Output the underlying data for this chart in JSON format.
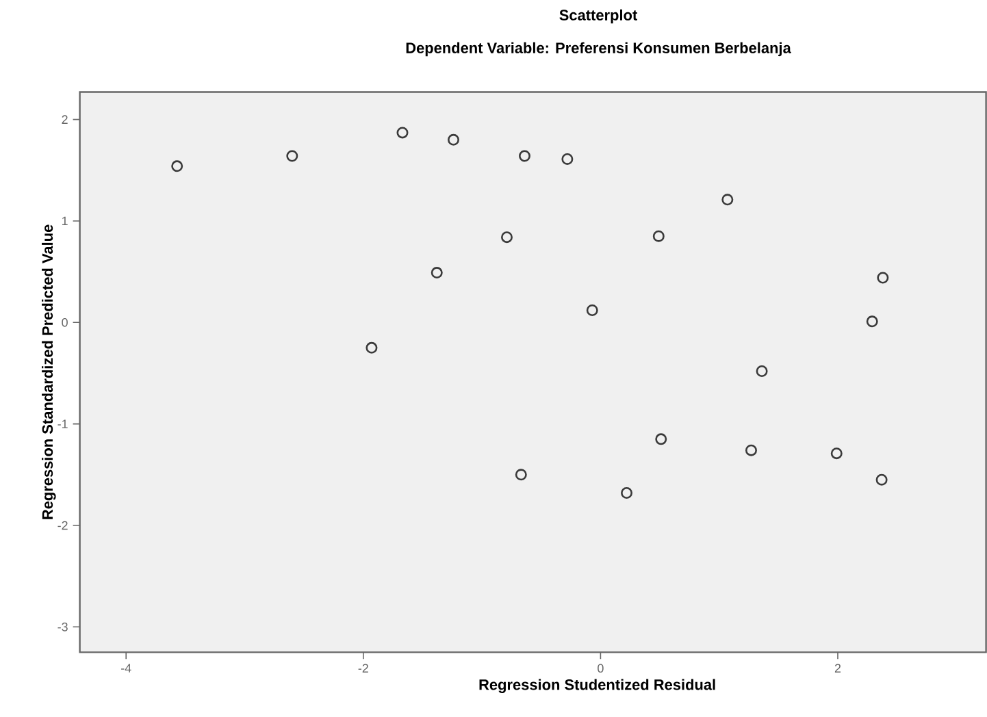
{
  "chart_data": {
    "type": "scatter",
    "title": "Scatterplot",
    "subtitle": "Dependent Variable: Preferensi Konsumen Berbelanja",
    "xlabel": "Regression Studentized Residual",
    "ylabel": "Regression Standardized Predicted Value",
    "x": [
      -3.57,
      -2.6,
      -1.67,
      -1.24,
      -1.38,
      -1.93,
      -0.64,
      -0.28,
      1.07,
      -0.79,
      0.49,
      2.38,
      -0.07,
      2.29,
      1.36,
      -0.67,
      0.22,
      0.51,
      1.27,
      1.99,
      2.37
    ],
    "values": [
      1.54,
      1.64,
      1.87,
      1.8,
      0.49,
      -0.25,
      1.64,
      1.61,
      1.21,
      0.84,
      0.85,
      0.44,
      0.12,
      0.01,
      -0.48,
      -1.5,
      -1.68,
      -1.15,
      -1.26,
      -1.29,
      -1.55
    ],
    "color": "#3a3a3a",
    "marker": "circle",
    "xlim": [
      -4.39,
      3.25
    ],
    "ylim": [
      -3.25,
      2.27
    ],
    "xticks": [
      -4,
      -2,
      0,
      2
    ],
    "yticks": [
      -3,
      -2,
      -1,
      0,
      1,
      2
    ]
  }
}
